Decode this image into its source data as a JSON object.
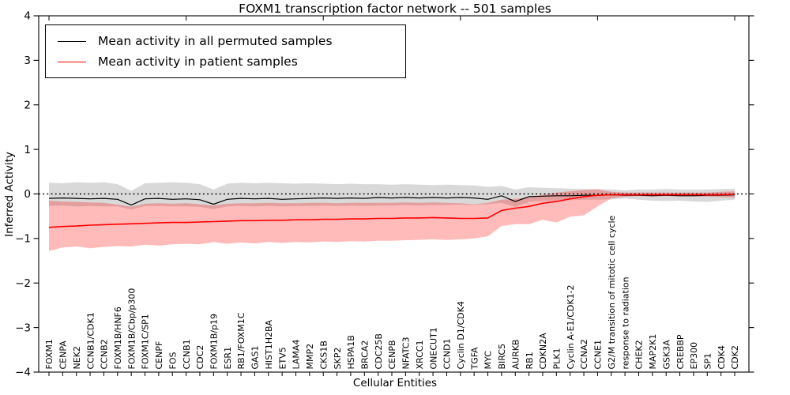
{
  "chart_data": {
    "type": "line",
    "title": "FOXM1 transcription factor network -- 501 samples",
    "xlabel": "Cellular Entities",
    "ylabel": "Inferred Activity",
    "ylim": [
      -4,
      4
    ],
    "yticks": [
      -4,
      -3,
      -2,
      -1,
      0,
      1,
      2,
      3,
      4
    ],
    "grid": false,
    "legend_position": "upper left",
    "zero_line": {
      "value": 0,
      "style": "dotted",
      "color": "#000000"
    },
    "categories": [
      "FOXM1",
      "CENPA",
      "NEK2",
      "CCNB1/CDK1",
      "CCNB2",
      "FOXM1B/HNF6",
      "FOXM1B/Cbp/p300",
      "FOXM1C/SP1",
      "CENPF",
      "FOS",
      "CCNB1",
      "CDC2",
      "FOXM1B/p19",
      "ESR1",
      "RB1/FOXM1C",
      "GAS1",
      "HIST1H2BA",
      "ETV5",
      "LAMA4",
      "MMP2",
      "CKS1B",
      "SKP2",
      "HSPA1B",
      "BRCA2",
      "CDC25B",
      "CENPB",
      "NFATC3",
      "XRCC1",
      "ONECUT1",
      "CCND1",
      "Cyclin D1/CDK4",
      "TGFA",
      "MYC",
      "BIRC5",
      "AURKB",
      "RB1",
      "CDKN2A",
      "PLK1",
      "Cyclin A-E1/CDK1-2",
      "CCNA2",
      "CCNE1",
      "G2/M transition of mitotic cell cycle",
      "response to radiation",
      "CHEK2",
      "MAP2K1",
      "GSK3A",
      "CREBBP",
      "EP300",
      "SP1",
      "CDK4",
      "CDK2"
    ],
    "series": [
      {
        "name": "Mean activity in all permuted samples",
        "color": "#000000",
        "values": [
          -0.1,
          -0.09,
          -0.1,
          -0.11,
          -0.1,
          -0.12,
          -0.25,
          -0.11,
          -0.1,
          -0.12,
          -0.11,
          -0.13,
          -0.23,
          -0.12,
          -0.1,
          -0.11,
          -0.1,
          -0.12,
          -0.11,
          -0.1,
          -0.09,
          -0.1,
          -0.09,
          -0.1,
          -0.08,
          -0.09,
          -0.08,
          -0.09,
          -0.08,
          -0.09,
          -0.08,
          -0.09,
          -0.12,
          -0.04,
          -0.17,
          -0.06,
          -0.05,
          -0.04,
          -0.04,
          -0.03,
          -0.03,
          -0.02,
          -0.03,
          -0.03,
          -0.04,
          -0.03,
          -0.04,
          -0.04,
          -0.03,
          -0.03,
          -0.02
        ],
        "band": {
          "fill": "rgba(0,0,0,0.15)",
          "upper": [
            0.25,
            0.24,
            0.26,
            0.25,
            0.26,
            0.22,
            0.07,
            0.24,
            0.25,
            0.26,
            0.25,
            0.22,
            0.1,
            0.23,
            0.25,
            0.24,
            0.25,
            0.24,
            0.23,
            0.24,
            0.23,
            0.22,
            0.23,
            0.22,
            0.22,
            0.21,
            0.22,
            0.21,
            0.2,
            0.21,
            0.2,
            0.19,
            0.16,
            0.18,
            0.1,
            0.15,
            0.14,
            0.13,
            0.12,
            0.11,
            0.11,
            0.1,
            0.08,
            0.1,
            0.1,
            0.11,
            0.1,
            0.1,
            0.1,
            0.11,
            0.12
          ],
          "lower": [
            -0.27,
            -0.26,
            -0.28,
            -0.27,
            -0.28,
            -0.28,
            -0.35,
            -0.27,
            -0.27,
            -0.28,
            -0.28,
            -0.29,
            -0.34,
            -0.28,
            -0.27,
            -0.28,
            -0.27,
            -0.28,
            -0.27,
            -0.27,
            -0.26,
            -0.27,
            -0.26,
            -0.27,
            -0.26,
            -0.26,
            -0.25,
            -0.26,
            -0.25,
            -0.25,
            -0.24,
            -0.24,
            -0.23,
            -0.2,
            -0.29,
            -0.18,
            -0.16,
            -0.15,
            -0.14,
            -0.13,
            -0.13,
            -0.12,
            -0.1,
            -0.13,
            -0.15,
            -0.16,
            -0.15,
            -0.17,
            -0.18,
            -0.15,
            -0.13
          ]
        }
      },
      {
        "name": "Mean activity in patient samples",
        "color": "#ff0000",
        "values": [
          -0.75,
          -0.73,
          -0.72,
          -0.7,
          -0.69,
          -0.68,
          -0.67,
          -0.66,
          -0.65,
          -0.64,
          -0.64,
          -0.63,
          -0.62,
          -0.61,
          -0.6,
          -0.6,
          -0.59,
          -0.59,
          -0.58,
          -0.58,
          -0.57,
          -0.57,
          -0.56,
          -0.56,
          -0.55,
          -0.55,
          -0.54,
          -0.54,
          -0.53,
          -0.54,
          -0.55,
          -0.55,
          -0.54,
          -0.37,
          -0.32,
          -0.28,
          -0.21,
          -0.17,
          -0.11,
          -0.06,
          -0.03,
          -0.02,
          -0.02,
          -0.02,
          -0.02,
          -0.02,
          -0.02,
          -0.02,
          -0.02,
          -0.02,
          -0.01
        ],
        "band": {
          "fill": "rgba(255,0,0,0.27)",
          "upper": [
            -0.15,
            -0.17,
            -0.18,
            -0.19,
            -0.2,
            -0.24,
            -0.29,
            -0.22,
            -0.21,
            -0.22,
            -0.21,
            -0.23,
            -0.26,
            -0.22,
            -0.21,
            -0.21,
            -0.2,
            -0.21,
            -0.21,
            -0.2,
            -0.2,
            -0.21,
            -0.2,
            -0.2,
            -0.2,
            -0.2,
            -0.19,
            -0.2,
            -0.19,
            -0.2,
            -0.21,
            -0.23,
            -0.2,
            -0.13,
            -0.11,
            -0.08,
            -0.02,
            0.03,
            0.06,
            0.09,
            0.1,
            0.05,
            0.03,
            0.03,
            0.03,
            0.03,
            0.03,
            0.03,
            0.03,
            0.05,
            0.06
          ],
          "lower": [
            -1.28,
            -1.2,
            -1.18,
            -1.22,
            -1.19,
            -1.17,
            -1.18,
            -1.14,
            -1.16,
            -1.13,
            -1.12,
            -1.13,
            -1.08,
            -1.12,
            -1.09,
            -1.11,
            -1.08,
            -1.1,
            -1.08,
            -1.09,
            -1.07,
            -1.08,
            -1.06,
            -1.07,
            -1.05,
            -1.05,
            -1.04,
            -1.03,
            -1.02,
            -1.03,
            -1.02,
            -1.0,
            -0.95,
            -0.72,
            -0.68,
            -0.68,
            -0.58,
            -0.64,
            -0.51,
            -0.48,
            -0.28,
            -0.1,
            -0.06,
            -0.05,
            -0.05,
            -0.05,
            -0.05,
            -0.05,
            -0.06,
            -0.07,
            -0.08
          ]
        }
      }
    ]
  }
}
